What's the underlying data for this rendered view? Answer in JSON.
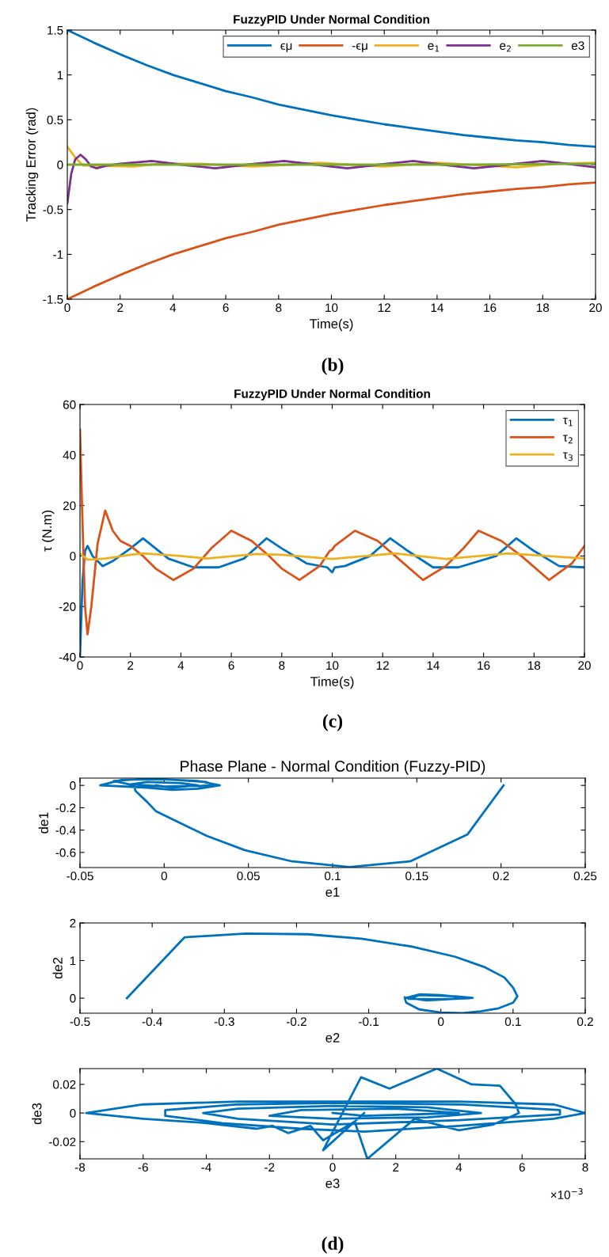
{
  "chart_data": [
    {
      "type": "line",
      "title": "FuzzyPID Under Normal Condition",
      "xlabel": "Time(s)",
      "ylabel": "Tracking Error (rad)",
      "xlim": [
        0,
        20
      ],
      "xticks": [
        0,
        2,
        4,
        6,
        8,
        10,
        12,
        14,
        16,
        18,
        20
      ],
      "ylim": [
        -1.5,
        1.5
      ],
      "yticks": [
        -1.5,
        -1,
        -0.5,
        0,
        0.5,
        1,
        1.5
      ],
      "legend": "top right",
      "annotations": [
        "(b)"
      ],
      "series": [
        {
          "name": "ϵμ",
          "color": "#0072bd",
          "x": [
            0,
            1,
            2,
            3,
            4,
            5,
            6,
            7,
            8,
            9,
            10,
            11,
            12,
            13,
            14,
            15,
            16,
            17,
            18,
            19,
            20
          ],
          "values": [
            1.5,
            1.36,
            1.23,
            1.11,
            1.0,
            0.91,
            0.82,
            0.75,
            0.67,
            0.61,
            0.55,
            0.5,
            0.45,
            0.41,
            0.37,
            0.33,
            0.3,
            0.27,
            0.25,
            0.22,
            0.2
          ]
        },
        {
          "name": "-ϵμ",
          "color": "#d95319",
          "x": [
            0,
            1,
            2,
            3,
            4,
            5,
            6,
            7,
            8,
            9,
            10,
            11,
            12,
            13,
            14,
            15,
            16,
            17,
            18,
            19,
            20
          ],
          "values": [
            -1.5,
            -1.36,
            -1.23,
            -1.11,
            -1.0,
            -0.91,
            -0.82,
            -0.75,
            -0.67,
            -0.61,
            -0.55,
            -0.5,
            -0.45,
            -0.41,
            -0.37,
            -0.33,
            -0.3,
            -0.27,
            -0.25,
            -0.22,
            -0.2
          ]
        },
        {
          "name": "e$_{1}$",
          "color": "#edb120",
          "x": [
            0,
            0.3,
            0.6,
            1,
            2.5,
            3.5,
            5,
            7,
            8.5,
            9.5,
            12,
            14,
            17,
            18.5,
            20
          ],
          "values": [
            0.2,
            0.08,
            -0.01,
            -0.01,
            -0.02,
            0.01,
            0.01,
            -0.02,
            0.0,
            0.02,
            -0.02,
            0.02,
            -0.03,
            0.01,
            0.02
          ]
        },
        {
          "name": "e$_{2}$",
          "color": "#7e2f8e",
          "x": [
            0,
            0.15,
            0.3,
            0.5,
            0.7,
            0.9,
            1.1,
            1.5,
            2,
            3.2,
            4.3,
            5.6,
            6.8,
            8.2,
            9.4,
            10.6,
            11.8,
            13.1,
            14.2,
            15.4,
            16.7,
            18,
            19.2,
            20
          ],
          "values": [
            -0.43,
            -0.1,
            0.06,
            0.11,
            0.06,
            -0.02,
            -0.04,
            -0.01,
            0.01,
            0.04,
            0.0,
            -0.04,
            0.0,
            0.04,
            0.0,
            -0.04,
            0.0,
            0.04,
            0.0,
            -0.04,
            0.0,
            0.04,
            0.0,
            -0.03
          ]
        },
        {
          "name": "e3",
          "color": "#77ac30",
          "x": [
            0,
            5,
            10,
            15,
            20
          ],
          "values": [
            0,
            0,
            0,
            0,
            0.01
          ]
        }
      ]
    },
    {
      "type": "line",
      "title": "FuzzyPID Under Normal Condition",
      "xlabel": "Time(s)",
      "ylabel": "τ (N.m)",
      "xlim": [
        0,
        20
      ],
      "xticks": [
        0,
        2,
        4,
        6,
        8,
        10,
        12,
        14,
        16,
        18,
        20
      ],
      "ylim": [
        -40,
        60
      ],
      "yticks": [
        -40,
        -20,
        0,
        20,
        40,
        60
      ],
      "legend": "top right",
      "annotations": [
        "(c)"
      ],
      "series": [
        {
          "name": "τ$_{1}$",
          "color": "#0072bd",
          "x": [
            0,
            0.1,
            0.2,
            0.3,
            0.5,
            0.9,
            1.3,
            2,
            2.5,
            3,
            3.5,
            4.5,
            5.5,
            6.5,
            7.4,
            8,
            9,
            9.8,
            10,
            10.1,
            10.5,
            11.5,
            12.3,
            13,
            14,
            15,
            16.5,
            17.3,
            18,
            19,
            20
          ],
          "values": [
            -40,
            -10,
            2,
            4,
            0,
            -4,
            -2,
            3,
            7,
            3,
            -1,
            -4.5,
            -4.5,
            -1,
            7,
            3,
            -3,
            -4.5,
            -6.5,
            -4.5,
            -4,
            0,
            7,
            2,
            -4.5,
            -4.5,
            0,
            7,
            2,
            -4,
            -4.5
          ]
        },
        {
          "name": "τ$_{2}$",
          "color": "#d95319",
          "x": [
            0,
            0.08,
            0.2,
            0.3,
            0.45,
            0.7,
            1,
            1.3,
            1.6,
            2,
            2.5,
            3,
            3.7,
            4.5,
            5.2,
            6,
            6.8,
            7.5,
            8,
            8.7,
            9.5,
            9.9,
            10,
            10.1,
            10.9,
            11.8,
            12.5,
            13.6,
            14.5,
            15.2,
            15.8,
            16.7,
            17.5,
            18.6,
            19.5,
            20
          ],
          "values": [
            50,
            20,
            -20,
            -31,
            -20,
            5,
            18,
            10,
            6,
            4,
            0,
            -5,
            -9.5,
            -5,
            3,
            10,
            6,
            0,
            -5,
            -9.5,
            -4,
            2,
            2.5,
            4,
            10,
            6,
            0,
            -9.5,
            -4,
            3,
            10,
            6,
            0,
            -9.5,
            -3,
            4
          ]
        },
        {
          "name": "τ$_{3}$",
          "color": "#edb120",
          "x": [
            0,
            0.3,
            1,
            2,
            2.5,
            4,
            5,
            7,
            8,
            10,
            12.5,
            14.5,
            17,
            20
          ],
          "values": [
            1,
            -1.5,
            -1,
            0.5,
            1,
            0,
            -1,
            0.8,
            0.5,
            -1.2,
            1,
            -1.2,
            1,
            -1
          ]
        }
      ]
    },
    {
      "type": "line",
      "title": "Phase Plane - Normal Condition (Fuzzy-PID)",
      "xlabel": "e1",
      "ylabel": "de1",
      "xlim": [
        -0.05,
        0.25
      ],
      "xticks": [
        -0.05,
        0,
        0.05,
        0.1,
        0.15,
        0.2,
        0.25
      ],
      "ylim": [
        -0.735,
        0.065
      ],
      "yticks": [
        -0.6,
        -0.4,
        -0.2,
        0
      ],
      "series": [
        {
          "color": "#0072bd",
          "x": [
            0.2015,
            0.18,
            0.146,
            0.11,
            0.076,
            0.048,
            0.025,
            0.01,
            -0.005,
            -0.01,
            -0.017,
            -0.018,
            -0.03,
            -0.01,
            0.02,
            0.033,
            0.02,
            0.005,
            -0.01,
            -0.038,
            -0.025,
            0.0,
            0.025,
            0.03,
            0.0,
            -0.02,
            -0.01,
            0.01,
            0.02,
            0.005,
            -0.005
          ],
          "values": [
            0,
            -0.44,
            -0.68,
            -0.73,
            -0.68,
            -0.58,
            -0.45,
            -0.34,
            -0.23,
            -0.15,
            -0.05,
            0.0,
            0.04,
            0.06,
            0.04,
            0,
            -0.03,
            -0.04,
            -0.02,
            0,
            0.05,
            0.055,
            0.03,
            0,
            -0.01,
            0.01,
            0.03,
            0.02,
            0,
            -0.02,
            0
          ]
        }
      ]
    },
    {
      "type": "line",
      "xlabel": "e2",
      "ylabel": "de2",
      "xlim": [
        -0.5,
        0.2
      ],
      "xticks": [
        -0.5,
        -0.4,
        -0.3,
        -0.2,
        -0.1,
        0,
        0.1,
        0.2
      ],
      "ylim": [
        -0.4,
        2
      ],
      "yticks": [
        0,
        1,
        2
      ],
      "series": [
        {
          "color": "#0072bd",
          "x": [
            -0.435,
            -0.355,
            -0.27,
            -0.185,
            -0.11,
            -0.04,
            0.02,
            0.06,
            0.088,
            0.1,
            0.106,
            0.1,
            0.08,
            0.055,
            0.03,
            0,
            -0.03,
            -0.048,
            -0.05,
            -0.03,
            0,
            0.04,
            0,
            -0.045,
            -0.03,
            0.02,
            0.044,
            -0.02,
            -0.05
          ],
          "values": [
            0,
            1.62,
            1.72,
            1.7,
            1.58,
            1.37,
            1.1,
            0.83,
            0.55,
            0.28,
            0.05,
            -0.12,
            -0.27,
            -0.35,
            -0.4,
            -0.38,
            -0.3,
            -0.12,
            0,
            0.1,
            0.08,
            0,
            -0.03,
            -0.02,
            0.08,
            0.05,
            0.01,
            -0.06,
            0.02
          ]
        }
      ]
    },
    {
      "type": "line",
      "xlabel": "e3",
      "ylabel": "de3",
      "xlim": [
        -8,
        8
      ],
      "xticks": [
        -8,
        -6,
        -4,
        -2,
        0,
        2,
        4,
        6,
        8
      ],
      "ylim": [
        -0.032,
        0.031
      ],
      "yticks": [
        -0.02,
        0,
        0.02
      ],
      "annotations": [
        "×10$^{−3}$",
        "(d)"
      ],
      "series": [
        {
          "color": "#0072bd",
          "x": [
            1,
            -0.3,
            0.9,
            1.8,
            3.3,
            4.4,
            5.3,
            5.8,
            5.9,
            5.7,
            5.1,
            4,
            2.6,
            1.1,
            0.7,
            -0.3,
            -0.7,
            -1.4,
            -1.9,
            -2.4,
            -4,
            -6,
            -7.8,
            -6,
            -3,
            0,
            4,
            7,
            8,
            7,
            4,
            1,
            -1,
            -3.5,
            -5.3,
            -5.3,
            -3,
            0,
            4,
            7.2,
            7.2,
            4,
            0,
            -3,
            -4.1,
            -3,
            0,
            3,
            4.7,
            3,
            0,
            -2,
            -1,
            2,
            4,
            1,
            0
          ],
          "values": [
            0,
            -0.026,
            0.025,
            0.017,
            0.031,
            0.02,
            0.019,
            0.006,
            0,
            -0.002,
            -0.008,
            -0.012,
            -0.004,
            -0.032,
            -0.006,
            -0.019,
            -0.009,
            -0.014,
            -0.009,
            -0.011,
            -0.007,
            -0.004,
            0,
            0.006,
            0.008,
            0.008,
            0.008,
            0.006,
            0,
            -0.004,
            -0.009,
            -0.013,
            -0.011,
            -0.007,
            -0.002,
            0.002,
            0.006,
            0.007,
            0.006,
            0.002,
            -0.001,
            -0.005,
            -0.008,
            -0.004,
            0,
            0.003,
            0.005,
            0.004,
            0,
            -0.003,
            -0.004,
            -0.002,
            0.002,
            0.003,
            0,
            -0.002,
            0
          ]
        }
      ]
    }
  ]
}
